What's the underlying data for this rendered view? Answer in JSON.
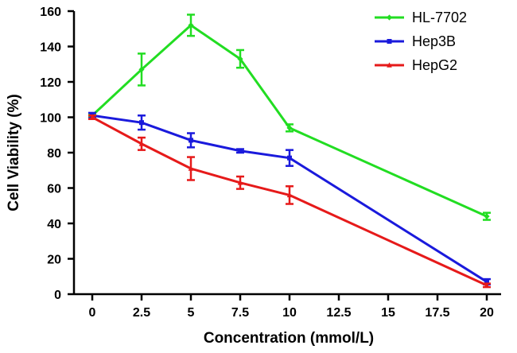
{
  "chart_data": {
    "type": "line",
    "title": "",
    "xlabel": "Concentration (mmol/L)",
    "ylabel": "Cell Viability (%)",
    "xlim": [
      0,
      20
    ],
    "ylim": [
      0,
      160
    ],
    "grid": false,
    "legend_position": "top-right",
    "x_ticks": [
      0,
      2.5,
      5,
      7.5,
      10,
      12.5,
      15,
      17.5,
      20
    ],
    "x_tick_labels": [
      "0",
      "2.5",
      "5",
      "7.5",
      "10",
      "12.5",
      "15",
      "17.5",
      "20"
    ],
    "y_ticks": [
      0,
      20,
      40,
      60,
      80,
      100,
      120,
      140,
      160
    ],
    "y_tick_labels": [
      "0",
      "20",
      "40",
      "60",
      "80",
      "100",
      "120",
      "140",
      "160"
    ],
    "series": [
      {
        "name": "HL-7702",
        "color": "#22dd22",
        "marker": "diamond",
        "x": [
          0,
          2.5,
          5,
          7.5,
          10,
          20
        ],
        "values": [
          101,
          127,
          152,
          133,
          94,
          44
        ],
        "errors": [
          1,
          9,
          6,
          5,
          2,
          2
        ]
      },
      {
        "name": "Hep3B",
        "color": "#1a1adc",
        "marker": "square",
        "x": [
          0,
          2.5,
          5,
          7.5,
          10,
          20
        ],
        "values": [
          101,
          97,
          87,
          81,
          77,
          7
        ],
        "errors": [
          1.5,
          4,
          4,
          1,
          4.5,
          1.5
        ]
      },
      {
        "name": "HepG2",
        "color": "#e61a1a",
        "marker": "triangle",
        "x": [
          0,
          2.5,
          5,
          7.5,
          10,
          20
        ],
        "values": [
          100,
          85,
          71,
          63,
          56,
          5
        ],
        "errors": [
          1,
          3.5,
          6.5,
          3.5,
          5,
          1
        ]
      }
    ]
  }
}
